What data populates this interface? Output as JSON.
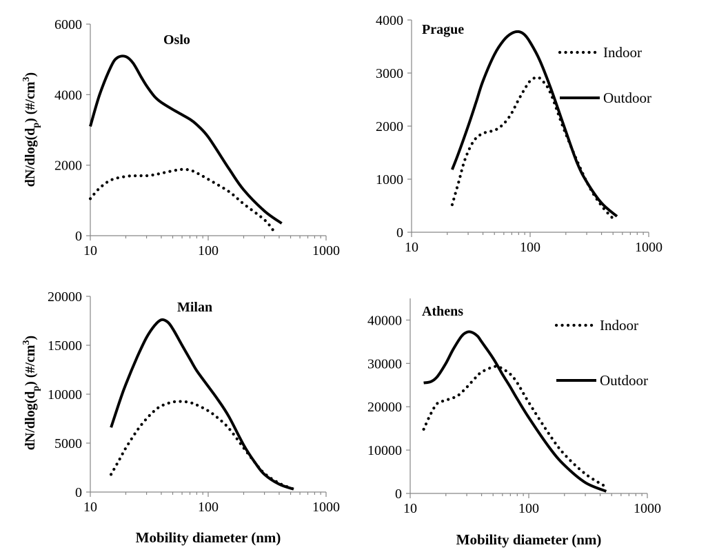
{
  "chart_data": [
    {
      "type": "line",
      "title": "Oslo",
      "xscale": "log",
      "xlim": [
        10,
        1000
      ],
      "ylim": [
        0,
        6000
      ],
      "xticks": [
        "10",
        "100",
        "1000"
      ],
      "yticks": [
        "0",
        "2000",
        "4000",
        "6000"
      ],
      "ylabel_parts": [
        "dN/dlog(d",
        "p",
        ") (#/cm",
        "3",
        ")"
      ],
      "xlabel": "",
      "legend": [],
      "series": [
        {
          "name": "Indoor",
          "style": "dotted",
          "x": [
            10,
            12,
            15,
            20,
            25,
            30,
            35,
            40,
            50,
            60,
            70,
            80,
            100,
            150,
            200,
            300,
            360
          ],
          "y": [
            1050,
            1350,
            1580,
            1680,
            1700,
            1700,
            1730,
            1770,
            1840,
            1880,
            1860,
            1780,
            1600,
            1250,
            900,
            450,
            130
          ]
        },
        {
          "name": "Outdoor",
          "style": "solid",
          "x": [
            10,
            12,
            15,
            17,
            20,
            23,
            27,
            30,
            35,
            40,
            50,
            60,
            70,
            80,
            100,
            150,
            200,
            300,
            420
          ],
          "y": [
            3100,
            4000,
            4800,
            5050,
            5080,
            4900,
            4500,
            4250,
            3950,
            3780,
            3580,
            3430,
            3300,
            3150,
            2800,
            1900,
            1300,
            700,
            350
          ]
        }
      ]
    },
    {
      "type": "line",
      "title": "Prague",
      "xscale": "log",
      "xlim": [
        10,
        1000
      ],
      "ylim": [
        0,
        4000
      ],
      "xticks": [
        "10",
        "100",
        "1000"
      ],
      "yticks": [
        "0",
        "1000",
        "2000",
        "3000",
        "4000"
      ],
      "ylabel_parts": [],
      "xlabel": "",
      "legend": [
        "Indoor",
        "Outdoor"
      ],
      "series": [
        {
          "name": "Indoor",
          "style": "dotted",
          "x": [
            22,
            25,
            28,
            32,
            36,
            42,
            50,
            57,
            63,
            70,
            80,
            90,
            100,
            115,
            130,
            150,
            200,
            300,
            400,
            520
          ],
          "y": [
            520,
            950,
            1350,
            1650,
            1800,
            1880,
            1920,
            2000,
            2100,
            2250,
            2500,
            2700,
            2850,
            2920,
            2830,
            2600,
            1850,
            950,
            500,
            220
          ]
        },
        {
          "name": "Outdoor",
          "style": "solid",
          "x": [
            22,
            25,
            30,
            35,
            40,
            50,
            60,
            70,
            80,
            90,
            100,
            120,
            150,
            200,
            250,
            300,
            400,
            540
          ],
          "y": [
            1180,
            1500,
            2000,
            2450,
            2850,
            3350,
            3620,
            3750,
            3780,
            3720,
            3580,
            3250,
            2700,
            1900,
            1300,
            950,
            550,
            300
          ]
        }
      ]
    },
    {
      "type": "line",
      "title": "Milan",
      "xscale": "log",
      "xlim": [
        10,
        1000
      ],
      "ylim": [
        0,
        20000
      ],
      "xticks": [
        "10",
        "100",
        "1000"
      ],
      "yticks": [
        "0",
        "5000",
        "10000",
        "15000",
        "20000"
      ],
      "ylabel_parts": [
        "dN/dlog(d",
        "p",
        ") (#/cm",
        "3",
        ")"
      ],
      "xlabel": "Mobility diameter (nm)",
      "legend": [],
      "series": [
        {
          "name": "Indoor",
          "style": "dotted",
          "x": [
            15,
            18,
            20,
            25,
            30,
            35,
            40,
            50,
            60,
            70,
            80,
            100,
            120,
            150,
            200,
            250,
            300,
            400,
            530
          ],
          "y": [
            1800,
            3500,
            4500,
            6300,
            7500,
            8300,
            8800,
            9200,
            9250,
            9150,
            8900,
            8300,
            7600,
            6500,
            4500,
            3000,
            1900,
            900,
            300
          ]
        },
        {
          "name": "Outdoor",
          "style": "solid",
          "x": [
            15,
            18,
            20,
            25,
            30,
            35,
            40,
            45,
            50,
            60,
            70,
            80,
            100,
            120,
            150,
            200,
            250,
            300,
            400,
            530
          ],
          "y": [
            6600,
            9500,
            11000,
            13800,
            15800,
            17000,
            17600,
            17400,
            16700,
            15000,
            13600,
            12400,
            10800,
            9500,
            7700,
            4800,
            3000,
            1800,
            800,
            300
          ]
        }
      ]
    },
    {
      "type": "line",
      "title": "Athens",
      "xscale": "log",
      "xlim": [
        10,
        1000
      ],
      "ylim": [
        0,
        45000
      ],
      "xticks": [
        "10",
        "100",
        "1000"
      ],
      "yticks": [
        "0",
        "10000",
        "20000",
        "30000",
        "40000"
      ],
      "ylabel_parts": [],
      "xlabel": "Mobility diameter (nm)",
      "legend": [
        "Indoor",
        "Outdoor"
      ],
      "series": [
        {
          "name": "Indoor",
          "style": "dotted",
          "x": [
            13,
            15,
            17,
            20,
            25,
            30,
            35,
            40,
            50,
            55,
            60,
            70,
            80,
            100,
            150,
            200,
            300,
            450
          ],
          "y": [
            14800,
            18500,
            20800,
            21500,
            22500,
            24500,
            26500,
            28000,
            29200,
            29200,
            28800,
            27500,
            25500,
            21000,
            13500,
            9000,
            4500,
            1500
          ]
        },
        {
          "name": "Outdoor",
          "style": "solid",
          "x": [
            13,
            15,
            17,
            20,
            23,
            27,
            30,
            33,
            37,
            40,
            50,
            60,
            70,
            80,
            100,
            150,
            200,
            300,
            450
          ],
          "y": [
            25500,
            25800,
            27000,
            30000,
            33200,
            36200,
            37200,
            37200,
            36300,
            35000,
            31200,
            27500,
            24500,
            21800,
            17500,
            10500,
            6500,
            2500,
            500
          ]
        }
      ]
    }
  ]
}
